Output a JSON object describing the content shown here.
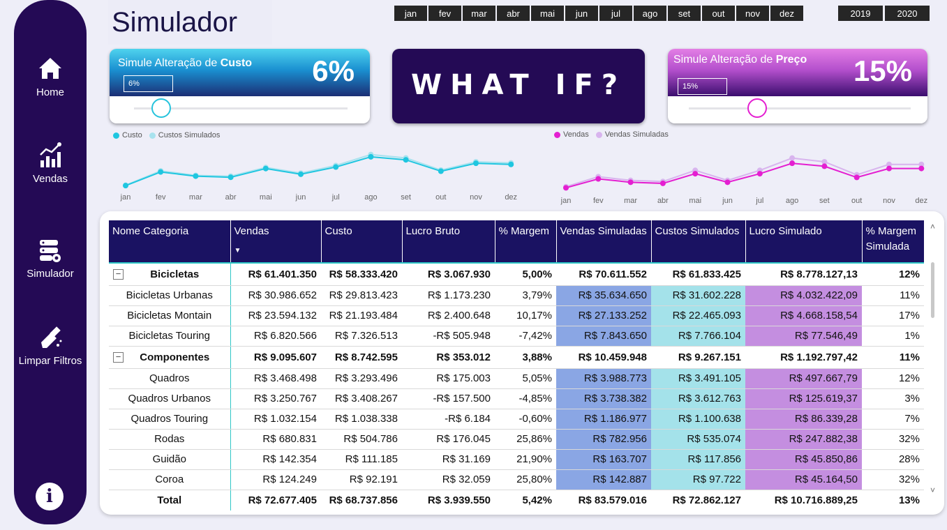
{
  "title": "Simulador",
  "nav": {
    "home": "Home",
    "vendas": "Vendas",
    "simulador": "Simulador",
    "limpar": "Limpar Filtros",
    "info_icon": "info-icon"
  },
  "months": [
    "jan",
    "fev",
    "mar",
    "abr",
    "mai",
    "jun",
    "jul",
    "ago",
    "set",
    "out",
    "nov",
    "dez"
  ],
  "years": [
    "2019",
    "2020"
  ],
  "custo_card": {
    "title_prefix": "Simule Alteração de ",
    "title_bold": "Custo",
    "percent": "6%",
    "input_value": "6%",
    "slider_value": 0.06
  },
  "whatif": "WHAT IF?",
  "preco_card": {
    "title_prefix": "Simule Alteração de ",
    "title_bold": "Preço",
    "percent": "15%",
    "input_value": "15%",
    "slider_value": 0.15
  },
  "colors": {
    "custo": "#1fc6e0",
    "custos_simulados": "#a8e2ee",
    "vendas": "#e41fd1",
    "vendas_simuladas": "#d8b4ee",
    "header": "#1a1262",
    "sidebar": "#240a55"
  },
  "chart_data": [
    {
      "type": "line",
      "categories": [
        "jan",
        "fev",
        "mar",
        "abr",
        "mai",
        "jun",
        "jul",
        "ago",
        "set",
        "out",
        "nov",
        "dez"
      ],
      "legend_position": "top-left",
      "series": [
        {
          "name": "Custo",
          "values": [
            2.0,
            5.6,
            4.5,
            4.2,
            6.5,
            5.0,
            6.9,
            9.6,
            8.8,
            5.8,
            7.9,
            7.6
          ]
        },
        {
          "name": "Custos Simulados",
          "values": [
            2.1,
            5.9,
            4.7,
            4.5,
            6.8,
            5.3,
            7.3,
            10.2,
            9.3,
            6.1,
            8.3,
            8.0
          ]
        }
      ]
    },
    {
      "type": "line",
      "categories": [
        "jan",
        "fev",
        "mar",
        "abr",
        "mai",
        "jun",
        "jul",
        "ago",
        "set",
        "out",
        "nov",
        "dez"
      ],
      "legend_position": "top-left",
      "series": [
        {
          "name": "Vendas",
          "values": [
            2.0,
            4.4,
            3.5,
            3.2,
            5.8,
            3.5,
            5.8,
            8.6,
            7.8,
            4.8,
            7.2,
            7.2
          ]
        },
        {
          "name": "Vendas Simuladas",
          "values": [
            2.3,
            5.0,
            4.0,
            3.7,
            6.7,
            4.0,
            6.7,
            10.0,
            9.0,
            5.5,
            8.3,
            8.3
          ]
        }
      ]
    }
  ],
  "table": {
    "headers": [
      "Nome Categoria",
      "Vendas",
      "Custo",
      "Lucro Bruto",
      "% Margem",
      "Vendas Simuladas",
      "Custos Simulados",
      "Lucro Simulado",
      "% Margem Simulada"
    ],
    "rows": [
      {
        "kind": "cat",
        "cells": [
          "Bicicletas",
          "R$ 61.401.350",
          "R$ 58.333.420",
          "R$ 3.067.930",
          "5,00%",
          "R$ 70.611.552",
          "R$ 61.833.425",
          "R$ 8.778.127,13",
          "12%"
        ]
      },
      {
        "kind": "sub",
        "cells": [
          "Bicicletas Urbanas",
          "R$ 30.986.652",
          "R$ 29.813.423",
          "R$ 1.173.230",
          "3,79%",
          "R$ 35.634.650",
          "R$ 31.602.228",
          "R$ 4.032.422,09",
          "11%"
        ]
      },
      {
        "kind": "sub",
        "cells": [
          "Bicicletas Montain",
          "R$ 23.594.132",
          "R$ 21.193.484",
          "R$ 2.400.648",
          "10,17%",
          "R$ 27.133.252",
          "R$ 22.465.093",
          "R$ 4.668.158,54",
          "17%"
        ]
      },
      {
        "kind": "sub",
        "cells": [
          "Bicicletas Touring",
          "R$ 6.820.566",
          "R$ 7.326.513",
          "-R$ 505.948",
          "-7,42%",
          "R$ 7.843.650",
          "R$ 7.766.104",
          "R$ 77.546,49",
          "1%"
        ]
      },
      {
        "kind": "cat",
        "cells": [
          "Componentes",
          "R$ 9.095.607",
          "R$ 8.742.595",
          "R$ 353.012",
          "3,88%",
          "R$ 10.459.948",
          "R$ 9.267.151",
          "R$ 1.192.797,42",
          "11%"
        ]
      },
      {
        "kind": "sub",
        "cells": [
          "Quadros",
          "R$ 3.468.498",
          "R$ 3.293.496",
          "R$ 175.003",
          "5,05%",
          "R$ 3.988.773",
          "R$ 3.491.105",
          "R$ 497.667,79",
          "12%"
        ]
      },
      {
        "kind": "sub",
        "cells": [
          "Quadros Urbanos",
          "R$ 3.250.767",
          "R$ 3.408.267",
          "-R$ 157.500",
          "-4,85%",
          "R$ 3.738.382",
          "R$ 3.612.763",
          "R$ 125.619,37",
          "3%"
        ]
      },
      {
        "kind": "sub",
        "cells": [
          "Quadros Touring",
          "R$ 1.032.154",
          "R$ 1.038.338",
          "-R$ 6.184",
          "-0,60%",
          "R$ 1.186.977",
          "R$ 1.100.638",
          "R$ 86.339,28",
          "7%"
        ]
      },
      {
        "kind": "sub",
        "cells": [
          "Rodas",
          "R$ 680.831",
          "R$ 504.786",
          "R$ 176.045",
          "25,86%",
          "R$ 782.956",
          "R$ 535.074",
          "R$ 247.882,38",
          "32%"
        ]
      },
      {
        "kind": "sub",
        "cells": [
          "Guidão",
          "R$ 142.354",
          "R$ 111.185",
          "R$ 31.169",
          "21,90%",
          "R$ 163.707",
          "R$ 117.856",
          "R$ 45.850,86",
          "28%"
        ]
      },
      {
        "kind": "sub",
        "cells": [
          "Coroa",
          "R$ 124.249",
          "R$ 92.191",
          "R$ 32.059",
          "25,80%",
          "R$ 142.887",
          "R$ 97.722",
          "R$ 45.164,50",
          "32%"
        ]
      },
      {
        "kind": "total",
        "cells": [
          "Total",
          "R$ 72.677.405",
          "R$ 68.737.856",
          "R$ 3.939.550",
          "5,42%",
          "R$ 83.579.016",
          "R$ 72.862.127",
          "R$ 10.716.889,25",
          "13%"
        ]
      }
    ],
    "expander_symbol": "−",
    "sort_symbol": "▼"
  },
  "scroll": {
    "up": "˄",
    "down": "˅"
  }
}
